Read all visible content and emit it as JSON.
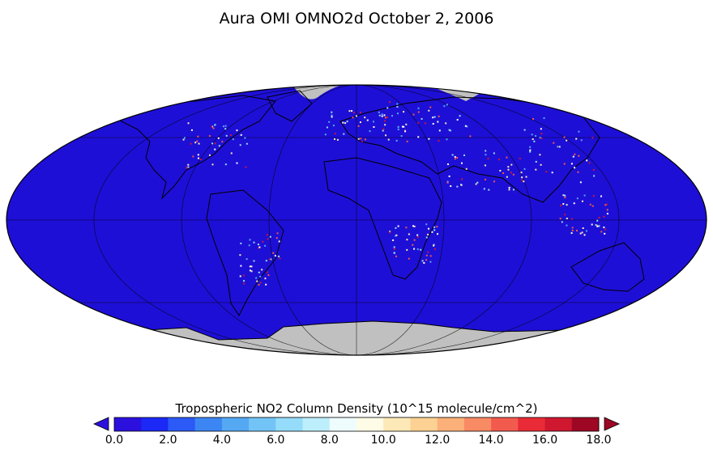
{
  "title": "Aura OMI OMNO2d October 2, 2006",
  "colorbar": {
    "label": "Tropospheric NO2 Column Density (10^15 molecule/cm^2)",
    "ticks": [
      "0.0",
      "2.0",
      "4.0",
      "6.0",
      "8.0",
      "10.0",
      "12.0",
      "14.0",
      "16.0",
      "18.0"
    ],
    "range": [
      0,
      18
    ],
    "bins": 18,
    "colors": [
      "#2b10de",
      "#1c28f5",
      "#2b5af7",
      "#3c86f3",
      "#55a8f2",
      "#72c4f6",
      "#95dcfa",
      "#bdeefb",
      "#eefcfe",
      "#fefbe6",
      "#fde8b8",
      "#fcd193",
      "#fbb079",
      "#f88a64",
      "#f35a4e",
      "#e82b36",
      "#cf1730",
      "#9e0724"
    ],
    "under_color": "#2b10de",
    "over_color": "#9e0724"
  },
  "map": {
    "projection": "Mollweide",
    "ocean_color": "#1e0fd6",
    "nodata_color": "#c0c0c0",
    "coastline_color": "#000000",
    "hotspot_colors": [
      "#ffffff",
      "#95dcfa",
      "#55a8f2",
      "#fde8b8",
      "#f35a4e",
      "#cf1730"
    ]
  }
}
